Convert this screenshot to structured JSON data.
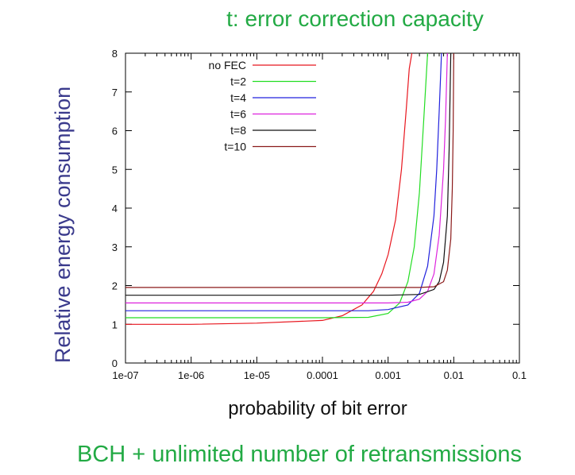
{
  "header": {
    "title": "t: error correction capacity"
  },
  "footer": {
    "caption": "BCH + unlimited number of retransmissions"
  },
  "chart_data": {
    "type": "line",
    "xscale": "log",
    "xlim": [
      1e-07,
      0.1
    ],
    "ylim": [
      0,
      8
    ],
    "xticks": [
      "1e-07",
      "1e-06",
      "1e-05",
      "0.0001",
      "0.001",
      "0.01",
      "0.1"
    ],
    "yticks": [
      "0",
      "1",
      "2",
      "3",
      "4",
      "5",
      "6",
      "7",
      "8"
    ],
    "xlabel": "probability of bit error",
    "ylabel": "Relative energy consumption",
    "legend_position": "top-left",
    "grid": false,
    "series": [
      {
        "name": "no FEC",
        "color": "#e8161e",
        "x": [
          1e-07,
          1e-06,
          1e-05,
          0.0001,
          0.0002,
          0.0004,
          0.0006,
          0.0008,
          0.001,
          0.0013,
          0.0016,
          0.0019,
          0.0021,
          0.0023
        ],
        "y": [
          1.0,
          1.0,
          1.03,
          1.1,
          1.22,
          1.5,
          1.85,
          2.3,
          2.8,
          3.7,
          5.0,
          6.6,
          7.6,
          8.0
        ]
      },
      {
        "name": "t=2",
        "color": "#22dd22",
        "x": [
          1e-07,
          0.0001,
          0.0005,
          0.001,
          0.0015,
          0.002,
          0.0025,
          0.003,
          0.0035,
          0.004
        ],
        "y": [
          1.17,
          1.17,
          1.18,
          1.28,
          1.55,
          2.1,
          3.0,
          4.4,
          6.3,
          8.0
        ]
      },
      {
        "name": "t=4",
        "color": "#2222dd",
        "x": [
          1e-07,
          0.0005,
          0.001,
          0.002,
          0.003,
          0.004,
          0.005,
          0.0055,
          0.006,
          0.0065
        ],
        "y": [
          1.35,
          1.35,
          1.38,
          1.5,
          1.8,
          2.5,
          3.8,
          5.0,
          6.5,
          8.0
        ]
      },
      {
        "name": "t=6",
        "color": "#dd22dd",
        "x": [
          1e-07,
          0.001,
          0.002,
          0.003,
          0.004,
          0.005,
          0.006,
          0.007,
          0.0075,
          0.008
        ],
        "y": [
          1.55,
          1.55,
          1.57,
          1.65,
          1.85,
          2.3,
          3.3,
          5.0,
          6.3,
          8.0
        ]
      },
      {
        "name": "t=8",
        "color": "#111111",
        "x": [
          1e-07,
          0.001,
          0.003,
          0.005,
          0.006,
          0.007,
          0.008,
          0.0085,
          0.009
        ],
        "y": [
          1.75,
          1.75,
          1.77,
          1.9,
          2.1,
          2.6,
          3.8,
          5.5,
          8.0
        ]
      },
      {
        "name": "t=10",
        "color": "#8b1a1a",
        "x": [
          1e-07,
          0.003,
          0.005,
          0.007,
          0.008,
          0.009,
          0.0095,
          0.0098,
          0.01
        ],
        "y": [
          1.95,
          1.95,
          1.97,
          2.1,
          2.4,
          3.2,
          4.5,
          6.0,
          8.0
        ]
      }
    ]
  }
}
